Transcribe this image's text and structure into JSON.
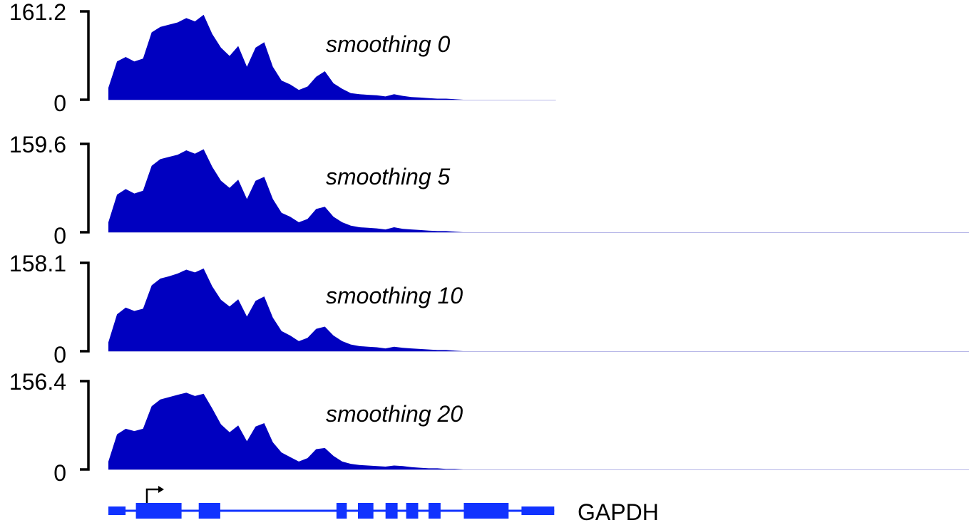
{
  "colors": {
    "signal": "#0000c0",
    "baseline": "#b8b8e8",
    "gene": "#1133ff",
    "axis": "#000000"
  },
  "chart_data": [
    {
      "type": "area",
      "title": "smoothing 0",
      "ylim": [
        0,
        161.2
      ],
      "ytick_labels": [
        "0",
        "161.2"
      ],
      "x_extent": 0.52,
      "x": [
        0.0,
        0.01,
        0.02,
        0.03,
        0.04,
        0.05,
        0.06,
        0.07,
        0.08,
        0.09,
        0.1,
        0.11,
        0.12,
        0.13,
        0.14,
        0.15,
        0.16,
        0.17,
        0.18,
        0.19,
        0.2,
        0.21,
        0.22,
        0.23,
        0.24,
        0.25,
        0.26,
        0.27,
        0.28,
        0.29,
        0.3,
        0.31,
        0.32,
        0.33,
        0.34,
        0.35,
        0.36,
        0.37,
        0.38,
        0.39,
        0.4,
        0.41,
        0.42
      ],
      "values": [
        22,
        70,
        78,
        70,
        75,
        123,
        133,
        137,
        141,
        149,
        143,
        155,
        120,
        95,
        80,
        98,
        60,
        95,
        105,
        60,
        35,
        28,
        18,
        24,
        42,
        52,
        30,
        20,
        12,
        10,
        9,
        8,
        6,
        10,
        7,
        5,
        4,
        3,
        2,
        2,
        1,
        0,
        0
      ]
    },
    {
      "type": "area",
      "title": "smoothing 5",
      "ylim": [
        0,
        159.6
      ],
      "ytick_labels": [
        "0",
        "159.6"
      ],
      "x_extent": 1.0,
      "x": [
        0.0,
        0.01,
        0.02,
        0.03,
        0.04,
        0.05,
        0.06,
        0.07,
        0.08,
        0.09,
        0.1,
        0.11,
        0.12,
        0.13,
        0.14,
        0.15,
        0.16,
        0.17,
        0.18,
        0.19,
        0.2,
        0.21,
        0.22,
        0.23,
        0.24,
        0.25,
        0.26,
        0.27,
        0.28,
        0.29,
        0.3,
        0.31,
        0.32,
        0.33,
        0.34,
        0.35,
        0.36,
        0.37,
        0.38,
        0.39,
        0.4,
        0.41,
        0.42
      ],
      "values": [
        18,
        68,
        78,
        70,
        75,
        120,
        132,
        136,
        140,
        148,
        142,
        150,
        118,
        93,
        80,
        95,
        60,
        93,
        100,
        60,
        35,
        28,
        18,
        24,
        42,
        46,
        28,
        18,
        12,
        9,
        8,
        7,
        5,
        9,
        6,
        5,
        4,
        3,
        2,
        2,
        1,
        0,
        0
      ]
    },
    {
      "type": "area",
      "title": "smoothing 10",
      "ylim": [
        0,
        158.1
      ],
      "ytick_labels": [
        "0",
        "158.1"
      ],
      "x_extent": 1.0,
      "x": [
        0.0,
        0.01,
        0.02,
        0.03,
        0.04,
        0.05,
        0.06,
        0.07,
        0.08,
        0.09,
        0.1,
        0.11,
        0.12,
        0.13,
        0.14,
        0.15,
        0.16,
        0.17,
        0.18,
        0.19,
        0.2,
        0.21,
        0.22,
        0.23,
        0.24,
        0.25,
        0.26,
        0.27,
        0.28,
        0.29,
        0.3,
        0.31,
        0.32,
        0.33,
        0.34,
        0.35,
        0.36,
        0.37,
        0.38,
        0.39,
        0.4,
        0.41,
        0.42
      ],
      "values": [
        16,
        66,
        78,
        72,
        76,
        118,
        130,
        134,
        139,
        146,
        141,
        148,
        116,
        92,
        80,
        93,
        62,
        90,
        98,
        60,
        36,
        28,
        18,
        24,
        40,
        44,
        28,
        18,
        12,
        9,
        8,
        7,
        5,
        8,
        6,
        5,
        4,
        3,
        2,
        2,
        1,
        0,
        0
      ]
    },
    {
      "type": "area",
      "title": "smoothing 20",
      "ylim": [
        0,
        156.4
      ],
      "ytick_labels": [
        "0",
        "156.4"
      ],
      "x_extent": 1.0,
      "x": [
        0.0,
        0.01,
        0.02,
        0.03,
        0.04,
        0.05,
        0.06,
        0.07,
        0.08,
        0.09,
        0.1,
        0.11,
        0.12,
        0.13,
        0.14,
        0.15,
        0.16,
        0.17,
        0.18,
        0.19,
        0.2,
        0.21,
        0.22,
        0.23,
        0.24,
        0.25,
        0.26,
        0.27,
        0.28,
        0.29,
        0.3,
        0.31,
        0.32,
        0.33,
        0.34,
        0.35,
        0.36,
        0.37,
        0.38,
        0.39,
        0.4,
        0.41,
        0.42
      ],
      "values": [
        14,
        62,
        72,
        68,
        72,
        112,
        124,
        128,
        132,
        136,
        130,
        134,
        108,
        80,
        66,
        78,
        50,
        76,
        82,
        48,
        30,
        22,
        14,
        20,
        36,
        38,
        24,
        14,
        10,
        8,
        7,
        6,
        5,
        7,
        6,
        4,
        3,
        2,
        2,
        1,
        1,
        0,
        0
      ]
    }
  ],
  "gene": {
    "name": "GAPDH",
    "strand": "+",
    "exons": [
      [
        0.0,
        0.02
      ],
      [
        0.032,
        0.085
      ],
      [
        0.105,
        0.13
      ],
      [
        0.265,
        0.277
      ],
      [
        0.29,
        0.308
      ],
      [
        0.322,
        0.336
      ],
      [
        0.346,
        0.36
      ],
      [
        0.372,
        0.386
      ],
      [
        0.413,
        0.465
      ],
      [
        0.48,
        0.518
      ]
    ]
  }
}
